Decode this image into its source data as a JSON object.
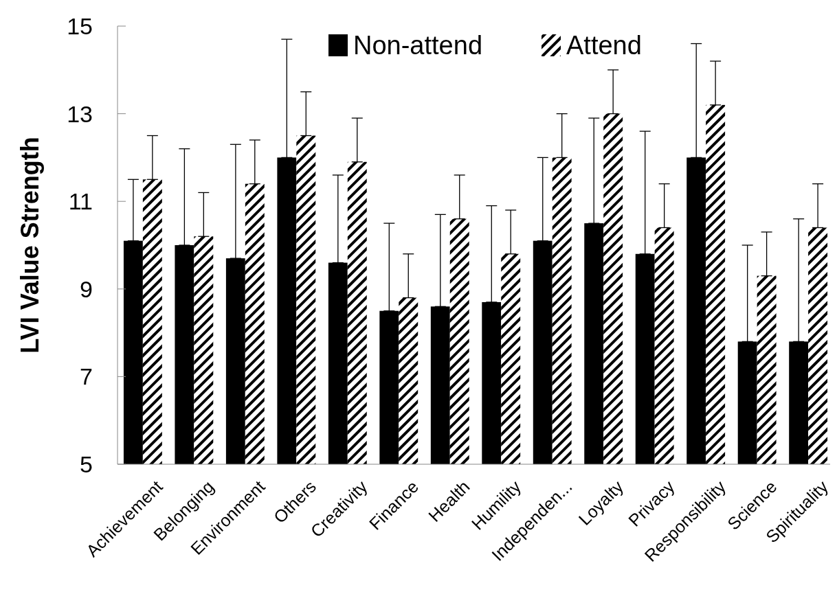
{
  "chart_data": {
    "type": "bar",
    "ylabel": "LVI Value Strength",
    "categories": [
      "Achievement",
      "Belonging",
      "Environment",
      "Others",
      "Creativity",
      "Finance",
      "Health",
      "Humility",
      "Independen...",
      "Loyalty",
      "Privacy",
      "Responsibility",
      "Science",
      "Spirituality"
    ],
    "series": [
      {
        "name": "Non-attend",
        "color": "#000000",
        "values": [
          10.1,
          10.0,
          9.7,
          12.0,
          9.6,
          8.5,
          8.6,
          8.7,
          10.1,
          10.5,
          9.8,
          12.0,
          7.8,
          7.8
        ],
        "errors": [
          [
            10.1,
            11.5
          ],
          [
            10.0,
            12.2
          ],
          [
            9.7,
            12.3
          ],
          [
            12.0,
            14.7
          ],
          [
            9.6,
            11.6
          ],
          [
            8.5,
            10.5
          ],
          [
            8.6,
            10.7
          ],
          [
            8.7,
            10.9
          ],
          [
            10.1,
            12.0
          ],
          [
            10.5,
            12.9
          ],
          [
            9.8,
            12.6
          ],
          [
            12.0,
            14.6
          ],
          [
            7.8,
            10.0
          ],
          [
            7.8,
            10.6
          ]
        ]
      },
      {
        "name": "Attend",
        "color": "#000000",
        "values": [
          11.5,
          10.2,
          11.4,
          12.5,
          11.9,
          8.8,
          10.6,
          9.8,
          12.0,
          13.0,
          10.4,
          13.2,
          9.3,
          10.4
        ],
        "errors": [
          [
            11.5,
            12.5
          ],
          [
            10.2,
            11.2
          ],
          [
            11.4,
            12.4
          ],
          [
            12.5,
            13.5
          ],
          [
            11.9,
            12.9
          ],
          [
            8.8,
            9.8
          ],
          [
            10.6,
            11.6
          ],
          [
            9.8,
            10.8
          ],
          [
            12.0,
            13.0
          ],
          [
            13.0,
            14.0
          ],
          [
            10.4,
            11.4
          ],
          [
            13.2,
            14.2
          ],
          [
            9.3,
            10.3
          ],
          [
            10.4,
            11.4
          ]
        ]
      }
    ],
    "ylim": [
      5,
      15
    ],
    "yticks": [
      5,
      7,
      9,
      11,
      13,
      15
    ],
    "legend": "top",
    "grid": false
  }
}
